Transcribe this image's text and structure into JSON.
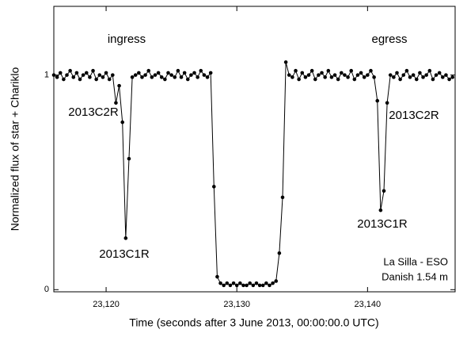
{
  "chart_data": {
    "type": "line",
    "markers": true,
    "color": "#000000",
    "x_label": "Time (seconds after 3 June 2013, 00:00:00.0 UTC)",
    "y_label": "Normalized flux of star + Chariklo",
    "annotations": [
      "ingress",
      "egress",
      "2013C2R",
      "2013C1R",
      "2013C2R",
      "2013C1R",
      "La Silla - ESO",
      "Danish 1.54 m"
    ],
    "xlim": [
      23116,
      23146.7
    ],
    "ylim": [
      -0.01,
      1.32
    ],
    "xticks": [
      {
        "value": 23120,
        "label": "23,120"
      },
      {
        "value": 23130,
        "label": "23,130"
      },
      {
        "value": 23140,
        "label": "23,140"
      }
    ],
    "yticks": [
      0,
      1
    ],
    "x": [
      23116,
      23116.25,
      23116.5,
      23116.75,
      23117,
      23117.25,
      23117.5,
      23117.75,
      23118,
      23118.25,
      23118.5,
      23118.75,
      23119,
      23119.25,
      23119.5,
      23119.75,
      23120,
      23120.25,
      23120.5,
      23120.75,
      23121,
      23121.25,
      23121.5,
      23121.75,
      23122,
      23122.25,
      23122.5,
      23122.75,
      23123,
      23123.25,
      23123.5,
      23123.75,
      23124,
      23124.25,
      23124.5,
      23124.75,
      23125,
      23125.25,
      23125.5,
      23125.75,
      23126,
      23126.25,
      23126.5,
      23126.75,
      23127,
      23127.25,
      23127.5,
      23127.75,
      23128,
      23128.25,
      23128.5,
      23128.75,
      23129,
      23129.25,
      23129.5,
      23129.75,
      23130,
      23130.25,
      23130.5,
      23130.75,
      23131,
      23131.25,
      23131.5,
      23131.75,
      23132,
      23132.25,
      23132.5,
      23132.75,
      23133,
      23133.25,
      23133.5,
      23133.75,
      23134,
      23134.25,
      23134.5,
      23134.75,
      23135,
      23135.25,
      23135.5,
      23135.75,
      23136,
      23136.25,
      23136.5,
      23136.75,
      23137,
      23137.25,
      23137.5,
      23137.75,
      23138,
      23138.25,
      23138.5,
      23138.75,
      23139,
      23139.25,
      23139.5,
      23139.75,
      23140,
      23140.25,
      23140.5,
      23140.75,
      23141,
      23141.25,
      23141.5,
      23141.75,
      23142,
      23142.25,
      23142.5,
      23142.75,
      23143,
      23143.25,
      23143.5,
      23143.75,
      23144,
      23144.25,
      23144.5,
      23144.75,
      23145,
      23145.25,
      23145.5,
      23145.75,
      23146,
      23146.25,
      23146.5
    ],
    "values": [
      1.0,
      0.99,
      1.01,
      0.98,
      1.0,
      1.02,
      0.99,
      1.01,
      0.98,
      1.0,
      1.01,
      0.99,
      1.02,
      0.98,
      1.0,
      0.99,
      1.01,
      0.98,
      1.0,
      0.87,
      0.95,
      0.78,
      0.24,
      0.61,
      0.99,
      1.0,
      1.01,
      0.99,
      1.0,
      1.02,
      0.99,
      1.0,
      1.01,
      0.99,
      0.98,
      1.01,
      1.0,
      0.99,
      1.02,
      0.99,
      1.01,
      0.98,
      1.0,
      1.01,
      0.99,
      1.02,
      1.0,
      0.99,
      1.01,
      0.48,
      0.06,
      0.03,
      0.02,
      0.03,
      0.02,
      0.03,
      0.02,
      0.03,
      0.02,
      0.02,
      0.03,
      0.02,
      0.03,
      0.02,
      0.02,
      0.03,
      0.02,
      0.03,
      0.04,
      0.17,
      0.43,
      1.06,
      1.0,
      0.99,
      1.02,
      0.98,
      1.01,
      0.99,
      1.0,
      1.02,
      0.98,
      1.0,
      1.01,
      0.99,
      1.02,
      0.99,
      1.0,
      0.98,
      1.01,
      1.0,
      0.99,
      1.02,
      0.98,
      1.0,
      1.01,
      0.99,
      1.0,
      1.02,
      0.99,
      0.88,
      0.37,
      0.46,
      0.87,
      1.0,
      0.99,
      1.01,
      0.98,
      1.0,
      1.02,
      0.99,
      1.0,
      0.98,
      1.01,
      0.99,
      1.0,
      1.02,
      0.98,
      1.0,
      1.01,
      0.99,
      1.0,
      0.98,
      0.99
    ]
  }
}
